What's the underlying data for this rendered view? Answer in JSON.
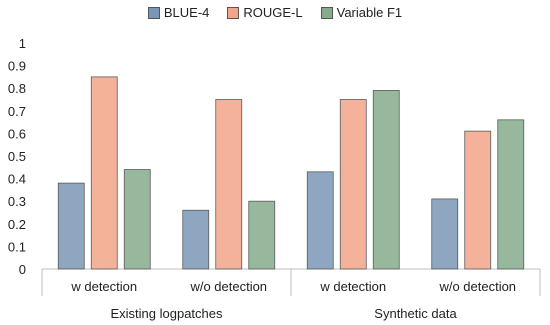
{
  "chart_data": {
    "type": "bar",
    "groups": [
      "Existing logpatches",
      "Synthetic data"
    ],
    "categories": [
      "w detection",
      "w/o detection",
      "w detection",
      "w/o detection"
    ],
    "series": [
      {
        "name": "BLUE-4",
        "values": [
          0.38,
          0.26,
          0.43,
          0.31
        ],
        "color": "#7a96b5"
      },
      {
        "name": "ROUGE-L",
        "values": [
          0.85,
          0.75,
          0.75,
          0.61
        ],
        "color": "#f3a48a"
      },
      {
        "name": "Variable F1",
        "values": [
          0.44,
          0.3,
          0.79,
          0.66
        ],
        "color": "#86ab8d"
      }
    ],
    "yticks": [
      "0",
      "0.1",
      "0.2",
      "0.3",
      "0.4",
      "0.5",
      "0.6",
      "0.7",
      "0.8",
      "0.9",
      "1"
    ],
    "ylim": [
      0,
      1
    ],
    "legend_position": "top",
    "grid": false
  }
}
